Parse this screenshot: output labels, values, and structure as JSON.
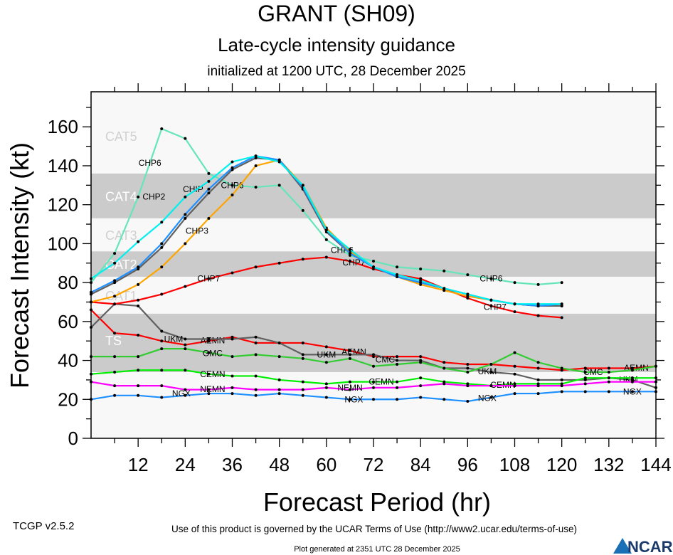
{
  "header": {
    "title": "GRANT (SH09)",
    "subtitle": "Late-cycle intensity guidance",
    "initialized": "initialized at 1200 UTC, 28 December 2025"
  },
  "footer": {
    "version": "TCGP v2.5.2",
    "terms": "Use of this product is governed by the UCAR Terms of Use (http://www2.ucar.edu/terms-of-use)",
    "generated": "Plot generated at 2351 UTC   28 December 2025",
    "logo": "NCAR"
  },
  "chart_data": {
    "type": "line",
    "title": "GRANT (SH09)",
    "xlabel": "Forecast Period (hr)",
    "ylabel": "Forecast Intensity (kt)",
    "xlim": [
      0,
      144
    ],
    "ylim": [
      0,
      178
    ],
    "xticks": [
      12,
      24,
      36,
      48,
      60,
      72,
      84,
      96,
      108,
      120,
      132,
      144
    ],
    "yticks": [
      0,
      20,
      40,
      60,
      80,
      100,
      120,
      140,
      160
    ],
    "grid": false,
    "categories_bands": [
      {
        "label": "TS",
        "min": 34,
        "max": 64,
        "shaded": true
      },
      {
        "label": "CAT1",
        "min": 64,
        "max": 83,
        "shaded": false
      },
      {
        "label": "CAT2",
        "min": 83,
        "max": 96,
        "shaded": true
      },
      {
        "label": "CAT3",
        "min": 96,
        "max": 113,
        "shaded": false
      },
      {
        "label": "CAT4",
        "min": 113,
        "max": 136,
        "shaded": true
      },
      {
        "label": "CAT5",
        "min": 136,
        "max": 178,
        "shaded": false
      }
    ],
    "colors": {
      "band": "#cbcbcb",
      "background": "#f8f8f8",
      "band_label_light": "#d0d0d0"
    },
    "series": [
      {
        "color": "#ff0000",
        "labels": [
          {
            "hour": 31,
            "text": "AEMN"
          },
          {
            "hour": 67,
            "text": "AEMN"
          },
          {
            "hour": 139,
            "text": "AEMN"
          }
        ],
        "x": [
          0,
          6,
          12,
          18,
          24,
          30,
          36,
          42,
          48,
          54,
          60,
          66,
          72,
          78,
          84,
          90,
          96,
          102,
          108,
          114,
          120,
          126,
          132,
          138,
          144
        ],
        "y": [
          66,
          54,
          53,
          50,
          48,
          50,
          52,
          49,
          49,
          49,
          47,
          45,
          42,
          42,
          42,
          39,
          38,
          38,
          37,
          36,
          35,
          36,
          36,
          36,
          37
        ]
      },
      {
        "color": "#606060",
        "labels": [
          {
            "hour": 29,
            "text": "UKM"
          },
          {
            "hour": 64,
            "text": "UKM"
          },
          {
            "hour": 101,
            "text": "UKM"
          },
          {
            "hour": 137,
            "text": "UKM"
          }
        ],
        "x": [
          0,
          6,
          12,
          18,
          24,
          30,
          36,
          42,
          48,
          54,
          60,
          66,
          72,
          78,
          84,
          90,
          96,
          102,
          108,
          114,
          120,
          126,
          132,
          138,
          144
        ],
        "y": [
          57,
          69,
          68,
          55,
          51,
          51,
          51,
          52,
          49,
          43,
          43,
          43,
          43,
          40,
          40,
          36,
          36,
          34,
          33,
          30,
          30,
          30,
          31,
          30,
          26
        ]
      },
      {
        "color": "#33cc33",
        "labels": [
          {
            "hour": 31,
            "text": "GMC"
          },
          {
            "hour": 67,
            "text": "CMC"
          },
          {
            "hour": 132,
            "text": "CMC"
          }
        ],
        "x": [
          0,
          6,
          12,
          18,
          24,
          30,
          36,
          42,
          48,
          54,
          60,
          66,
          72,
          78,
          84,
          90,
          96,
          102,
          108,
          114,
          120,
          126,
          132,
          138,
          144
        ],
        "y": [
          42,
          42,
          42,
          46,
          46,
          44,
          42,
          43,
          42,
          41,
          39,
          41,
          37,
          38,
          39,
          36,
          34,
          38,
          44,
          39,
          36,
          34,
          34,
          35,
          37
        ]
      },
      {
        "color": "#00ee00",
        "labels": [
          {
            "hour": 31,
            "text": "CEMN"
          },
          {
            "hour": 74,
            "text": "CEMN"
          },
          {
            "hour": 105,
            "text": "CEMN"
          }
        ],
        "x": [
          0,
          6,
          12,
          18,
          24,
          30,
          36,
          42,
          48,
          54,
          60,
          66,
          72,
          78,
          84,
          90,
          96,
          102,
          108,
          114,
          120,
          126,
          132,
          138,
          144
        ],
        "y": [
          33,
          34,
          35,
          35,
          35,
          33,
          32,
          32,
          30,
          29,
          28,
          29,
          29,
          29,
          31,
          29,
          28,
          27,
          28,
          28,
          28,
          31,
          31,
          31,
          31
        ]
      },
      {
        "color": "#ff00ff",
        "labels": [
          {
            "hour": 31,
            "text": "NEMN"
          },
          {
            "hour": 74,
            "text": "NEMN"
          }
        ],
        "x": [
          0,
          6,
          12,
          18,
          24,
          30,
          36,
          42,
          48,
          54,
          60,
          66,
          72,
          78,
          84,
          90,
          96,
          102,
          108,
          114,
          120,
          126,
          132,
          138,
          144
        ],
        "y": [
          29,
          27,
          27,
          27,
          25,
          25,
          26,
          25,
          25,
          25,
          26,
          25,
          26,
          26,
          27,
          28,
          27,
          27,
          27,
          27,
          27,
          28,
          29,
          29,
          29
        ]
      },
      {
        "color": "#1e90ff",
        "labels": [
          {
            "hour": 31,
            "text": "NGX"
          },
          {
            "hour": 67,
            "text": "NGX"
          },
          {
            "hour": 101,
            "text": "NGX"
          },
          {
            "hour": 138,
            "text": "NGX"
          }
        ],
        "x": [
          0,
          6,
          12,
          18,
          24,
          30,
          36,
          42,
          48,
          54,
          60,
          66,
          72,
          78,
          84,
          90,
          96,
          102,
          108,
          114,
          120,
          126,
          132,
          138,
          144
        ],
        "y": [
          20,
          22,
          22,
          21,
          22,
          23,
          23,
          22,
          23,
          22,
          21,
          20,
          20,
          20,
          21,
          20,
          19,
          21,
          23,
          23,
          24,
          24,
          24,
          24,
          24
        ]
      },
      {
        "color": "#ff0000",
        "labels": [
          {
            "hour": 30,
            "text": "CHP7"
          },
          {
            "hour": 67,
            "text": "CHP7"
          },
          {
            "hour": 103,
            "text": "CHP7"
          }
        ],
        "x": [
          0,
          6,
          12,
          18,
          24,
          30,
          36,
          42,
          48,
          54,
          60,
          66,
          72,
          78,
          84,
          90,
          96,
          102,
          108,
          114,
          120
        ],
        "y": [
          70,
          69,
          71,
          74,
          78,
          82,
          85,
          88,
          90,
          92,
          93,
          91,
          87,
          84,
          82,
          77,
          72,
          68,
          65,
          63,
          62
        ]
      },
      {
        "color": "#66e6b8",
        "labels": [
          {
            "hour": 15,
            "text": "CHP6"
          },
          {
            "hour": 36,
            "text": "CHP6"
          },
          {
            "hour": 64,
            "text": "CHP6"
          },
          {
            "hour": 102,
            "text": "CHP6"
          }
        ],
        "x": [
          0,
          6,
          12,
          18,
          24,
          30,
          36,
          42,
          48,
          54,
          60,
          66,
          72,
          78,
          84,
          90,
          96,
          102,
          108,
          114,
          120
        ],
        "y": [
          80,
          95,
          124,
          159,
          154,
          136,
          130,
          129,
          130,
          117,
          102,
          94,
          91,
          88,
          87,
          86,
          84,
          82,
          80,
          79,
          80
        ]
      },
      {
        "color": "#ffa500",
        "labels": [
          {
            "hour": 27,
            "text": "CHP3"
          }
        ],
        "x": [
          0,
          6,
          12,
          18,
          24,
          30,
          36,
          42,
          48,
          54,
          60,
          66,
          72,
          78,
          84,
          90,
          96,
          102,
          108,
          114,
          120
        ],
        "y": [
          70,
          73,
          79,
          88,
          100,
          113,
          125,
          140,
          143,
          130,
          108,
          96,
          88,
          83,
          79,
          76,
          73,
          71,
          69,
          68,
          68
        ]
      },
      {
        "color": "#606060",
        "labels": [],
        "x": [
          0,
          6,
          12,
          18,
          24,
          30,
          36,
          42,
          48,
          54,
          60,
          66,
          72,
          78,
          84,
          90,
          96,
          102,
          108,
          114,
          120
        ],
        "y": [
          74,
          80,
          87,
          98,
          113,
          126,
          138,
          144,
          143,
          128,
          106,
          95,
          88,
          83,
          80,
          77,
          74,
          71,
          69,
          68,
          68
        ]
      },
      {
        "color": "#1e90ff",
        "labels": [
          {
            "hour": 30,
            "text": "CHIP"
          }
        ],
        "x": [
          0,
          6,
          12,
          18,
          24,
          30,
          36,
          42,
          48,
          54,
          60,
          66,
          72,
          78,
          84,
          90,
          96,
          102,
          108,
          114,
          120
        ],
        "y": [
          75,
          81,
          88,
          100,
          115,
          128,
          139,
          145,
          143,
          129,
          107,
          95,
          88,
          83,
          80,
          77,
          74,
          71,
          69,
          68,
          69
        ]
      },
      {
        "color": "#00f0f0",
        "labels": [
          {
            "hour": 24,
            "text": "CHP2"
          }
        ],
        "x": [
          0,
          6,
          12,
          18,
          24,
          30,
          36,
          42,
          48,
          54,
          60,
          66,
          72,
          78,
          84,
          90,
          96,
          102,
          108,
          114,
          120
        ],
        "y": [
          82,
          90,
          101,
          111,
          124,
          132,
          142,
          145,
          142,
          130,
          107,
          97,
          88,
          84,
          81,
          77,
          74,
          71,
          69,
          69,
          69
        ]
      }
    ]
  }
}
